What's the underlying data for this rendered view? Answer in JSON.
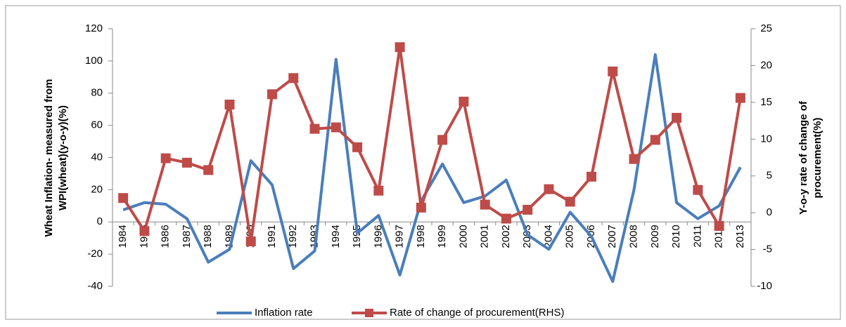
{
  "chart_data": {
    "type": "line",
    "categories": [
      "1984",
      "1985",
      "1986",
      "1987",
      "1988",
      "1989",
      "1990",
      "1991",
      "1992",
      "1993",
      "1994",
      "1995",
      "1996",
      "1997",
      "1998",
      "1999",
      "2000",
      "2001",
      "2002",
      "2003",
      "2004",
      "2005",
      "2006",
      "2007",
      "2008",
      "2009",
      "2010",
      "2011",
      "2012",
      "2013"
    ],
    "ylabel": [
      "Wheat Inflation- measured from",
      "WPI(wheat)(y-o-y)(%)"
    ],
    "y2label": [
      "Y-o-y rate of change of",
      "procurement(%)"
    ],
    "ylim": [
      -40,
      120
    ],
    "yticks": [
      -40,
      -20,
      0,
      20,
      40,
      60,
      80,
      100,
      120
    ],
    "y2lim": [
      -10,
      25
    ],
    "y2ticks": [
      -10,
      -5,
      0,
      5,
      10,
      15,
      20,
      25
    ],
    "grid": false,
    "legend": "bottom",
    "series": [
      {
        "name": "Inflation rate",
        "color": "#4a7ebb",
        "values": [
          7.5,
          12,
          11,
          2,
          -25,
          -17,
          38,
          23,
          -29,
          -18,
          101,
          -7,
          4,
          -33,
          13,
          36,
          12,
          16,
          26,
          -8,
          -17,
          6,
          -9,
          -37,
          20,
          104,
          12,
          2,
          10,
          34
        ]
      },
      {
        "name": "Rate of change of procurement(RHS)",
        "color": "#be4b48",
        "axis": "y2",
        "marker": "square",
        "values": [
          2,
          -2.5,
          7.4,
          6.8,
          5.8,
          14.7,
          -3.9,
          16.1,
          18.3,
          11.4,
          11.6,
          8.9,
          3,
          22.5,
          0.7,
          9.9,
          15.1,
          1.1,
          -0.8,
          0.4,
          3.2,
          1.5,
          4.9,
          19.2,
          7.3,
          9.9,
          12.9,
          3.1,
          -1.8,
          15.6
        ]
      }
    ]
  }
}
